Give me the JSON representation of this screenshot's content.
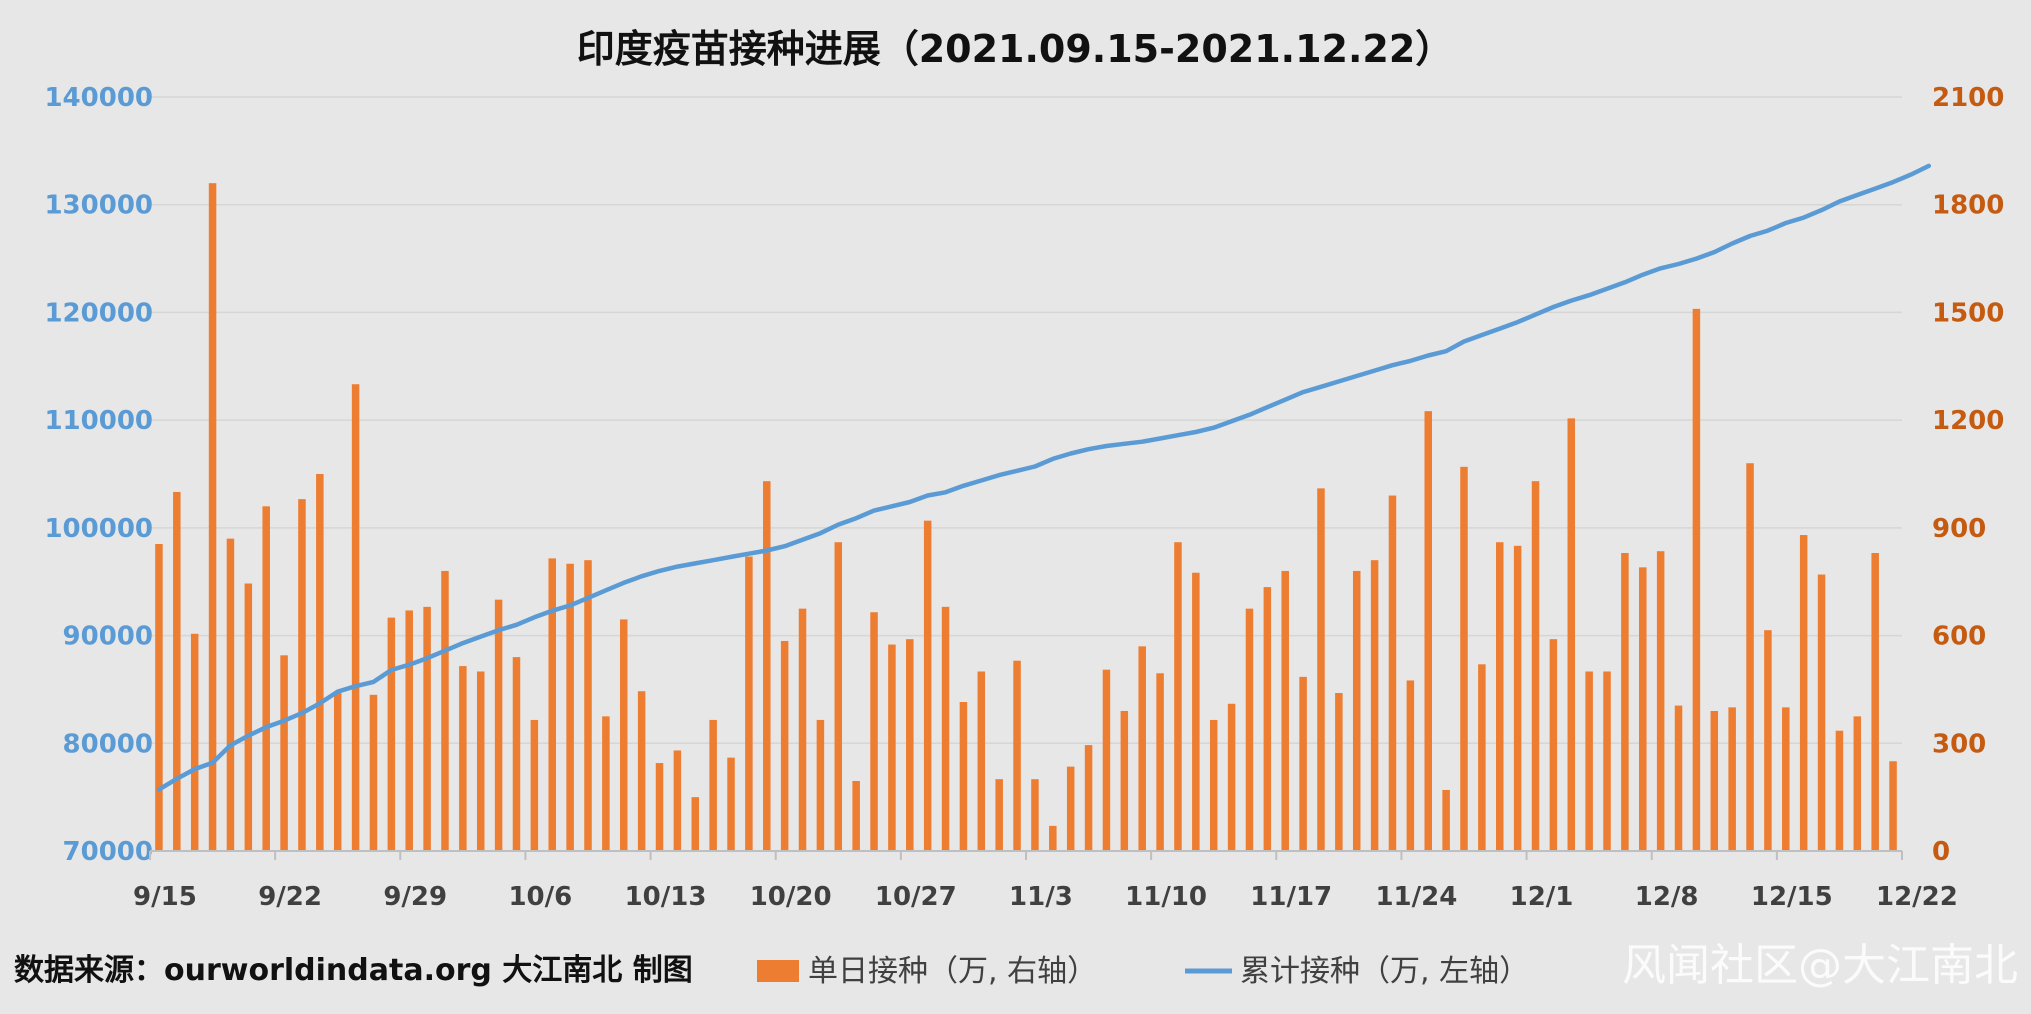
{
  "chart_data": {
    "type": "bar+line",
    "title": "印度疫苗接种进展（2021.09.15-2021.12.22）",
    "x_tick_labels": [
      "9/15",
      "9/22",
      "9/29",
      "10/6",
      "10/13",
      "10/20",
      "10/27",
      "11/3",
      "11/10",
      "11/17",
      "11/24",
      "12/1",
      "12/8",
      "12/15",
      "12/22"
    ],
    "y_left": {
      "ylim": [
        70000,
        140000
      ],
      "ticks": [
        "70000",
        "80000",
        "90000",
        "100000",
        "110000",
        "120000",
        "130000",
        "140000"
      ]
    },
    "y_right": {
      "ylim": [
        0,
        2100
      ],
      "ticks": [
        "0",
        "300",
        "600",
        "900",
        "1200",
        "1500",
        "1800",
        "2100"
      ]
    },
    "grid": true,
    "legend_position": "bottom",
    "series": [
      {
        "name": "单日接种（万, 右轴）",
        "type": "bar",
        "axis": "right",
        "color": "#ed7d31",
        "values": [
          855,
          1000,
          605,
          1860,
          870,
          745,
          960,
          545,
          980,
          1050,
          440,
          1300,
          435,
          650,
          670,
          680,
          780,
          515,
          500,
          700,
          540,
          365,
          815,
          800,
          810,
          375,
          645,
          445,
          245,
          280,
          150,
          365,
          260,
          820,
          1030,
          585,
          675,
          365,
          860,
          195,
          665,
          575,
          590,
          920,
          680,
          415,
          500,
          200,
          530,
          200,
          70,
          235,
          295,
          505,
          390,
          570,
          495,
          860,
          775,
          365,
          410,
          675,
          735,
          780,
          485,
          1010,
          440,
          780,
          810,
          990,
          475,
          1225,
          170,
          1070,
          520,
          860,
          850,
          1030,
          590,
          1205,
          500,
          500,
          830,
          790,
          835,
          405,
          1510,
          390,
          400,
          1080,
          615,
          400,
          880,
          770,
          335,
          375,
          830,
          250
        ]
      },
      {
        "name": "累计接种（万, 左轴）",
        "type": "line",
        "axis": "left",
        "color": "#5b9bd5",
        "values": [
          75700,
          76700,
          77600,
          78200,
          79800,
          80700,
          81500,
          82100,
          82800,
          83700,
          84800,
          85300,
          85700,
          86800,
          87300,
          87900,
          88600,
          89300,
          89900,
          90500,
          91000,
          91700,
          92300,
          92800,
          93500,
          94200,
          94900,
          95500,
          96000,
          96400,
          96700,
          97000,
          97300,
          97600,
          97900,
          98300,
          98900,
          99500,
          100300,
          100900,
          101600,
          102000,
          102400,
          103000,
          103300,
          103900,
          104400,
          104900,
          105300,
          105700,
          106400,
          106900,
          107300,
          107600,
          107800,
          108000,
          108300,
          108600,
          108900,
          109300,
          109900,
          110500,
          111200,
          111900,
          112600,
          113100,
          113600,
          114100,
          114600,
          115100,
          115500,
          116000,
          116400,
          117300,
          117900,
          118500,
          119100,
          119800,
          120500,
          121100,
          121600,
          122200,
          122800,
          123500,
          124100,
          124500,
          125000,
          125600,
          126400,
          127100,
          127600,
          128300,
          128800,
          129500,
          130300,
          130900,
          131500,
          132100,
          132800,
          133600
        ]
      }
    ]
  },
  "footer": {
    "source": "数据来源：ourworldindata.org 大江南北 制图",
    "watermark": "风闻社区@大江南北"
  }
}
